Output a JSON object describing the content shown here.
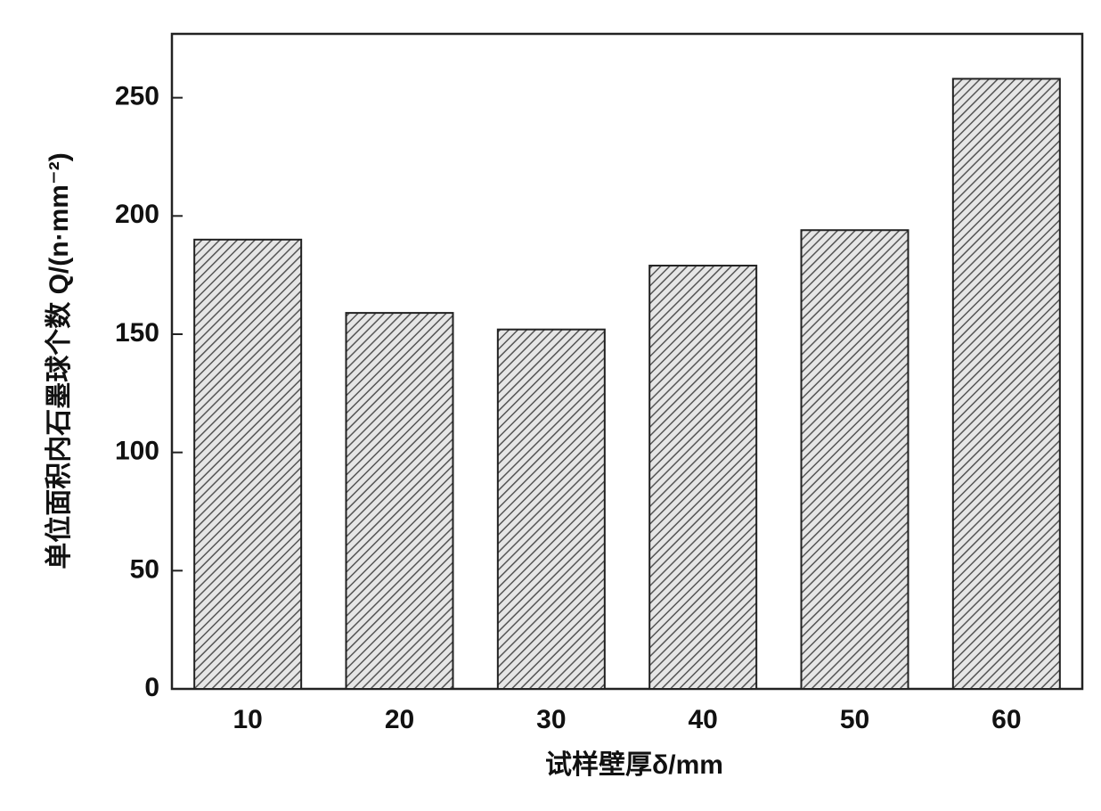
{
  "chart_data": {
    "type": "bar",
    "y_label": "单位面积内石墨球个数 Q/(n·mm⁻²)",
    "x_label": "试样壁厚δ/mm",
    "categories": [
      "10",
      "20",
      "30",
      "40",
      "50",
      "60"
    ],
    "values": [
      190,
      159,
      152,
      179,
      194,
      258
    ],
    "color": "#555555",
    "ylim": [
      0,
      277
    ],
    "yticks": [
      0,
      50,
      100,
      150,
      200,
      250
    ]
  }
}
